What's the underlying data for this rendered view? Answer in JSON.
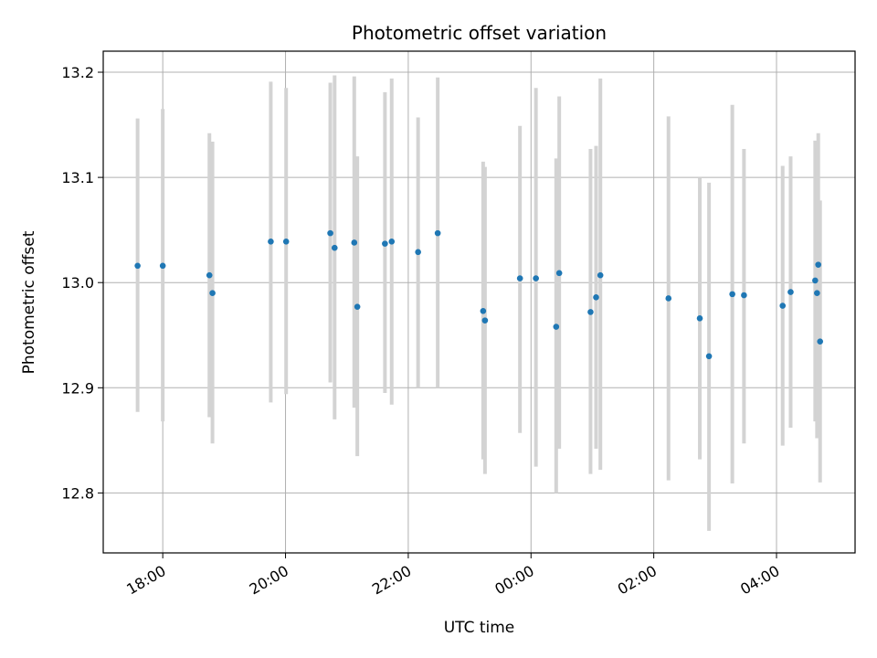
{
  "chart_data": {
    "type": "scatter",
    "title": "Photometric offset variation",
    "xlabel": "UTC time",
    "ylabel": "Photometric offset",
    "grid": true,
    "xlim": [
      -0.97,
      11.28
    ],
    "ylim": [
      12.743,
      13.22
    ],
    "x_ticks": [
      {
        "value": 0,
        "label": "18:00"
      },
      {
        "value": 2,
        "label": "20:00"
      },
      {
        "value": 4,
        "label": "22:00"
      },
      {
        "value": 6,
        "label": "00:00"
      },
      {
        "value": 8,
        "label": "02:00"
      },
      {
        "value": 10,
        "label": "04:00"
      }
    ],
    "y_ticks": [
      {
        "value": 12.8,
        "label": "12.8"
      },
      {
        "value": 12.9,
        "label": "12.9"
      },
      {
        "value": 13.0,
        "label": "13.0"
      },
      {
        "value": 13.1,
        "label": "13.1"
      },
      {
        "value": 13.2,
        "label": "13.2"
      }
    ],
    "x_unit_note": "hours after 18:00 UTC",
    "colors": {
      "point": "#1f77b4",
      "errorbar": "#d3d3d3",
      "grid": "#b0b0b0"
    },
    "points": [
      {
        "x": -0.41,
        "y": 13.016,
        "lo": 12.877,
        "hi": 13.156
      },
      {
        "x": 0.0,
        "y": 13.016,
        "lo": 12.868,
        "hi": 13.165
      },
      {
        "x": 0.76,
        "y": 13.007,
        "lo": 12.872,
        "hi": 13.142
      },
      {
        "x": 0.81,
        "y": 12.99,
        "lo": 12.847,
        "hi": 13.134
      },
      {
        "x": 1.76,
        "y": 13.039,
        "lo": 12.886,
        "hi": 13.191
      },
      {
        "x": 2.01,
        "y": 13.039,
        "lo": 12.894,
        "hi": 13.185
      },
      {
        "x": 2.73,
        "y": 13.047,
        "lo": 12.905,
        "hi": 13.19
      },
      {
        "x": 2.8,
        "y": 13.033,
        "lo": 12.87,
        "hi": 13.197
      },
      {
        "x": 3.12,
        "y": 13.038,
        "lo": 12.881,
        "hi": 13.196
      },
      {
        "x": 3.17,
        "y": 12.977,
        "lo": 12.835,
        "hi": 13.12
      },
      {
        "x": 3.62,
        "y": 13.037,
        "lo": 12.895,
        "hi": 13.181
      },
      {
        "x": 3.73,
        "y": 13.039,
        "lo": 12.884,
        "hi": 13.194
      },
      {
        "x": 4.16,
        "y": 13.029,
        "lo": 12.9,
        "hi": 13.157
      },
      {
        "x": 4.48,
        "y": 13.047,
        "lo": 12.9,
        "hi": 13.195
      },
      {
        "x": 5.22,
        "y": 12.973,
        "lo": 12.832,
        "hi": 13.115
      },
      {
        "x": 5.25,
        "y": 12.964,
        "lo": 12.818,
        "hi": 13.11
      },
      {
        "x": 5.82,
        "y": 13.004,
        "lo": 12.857,
        "hi": 13.149
      },
      {
        "x": 6.08,
        "y": 13.004,
        "lo": 12.825,
        "hi": 13.185
      },
      {
        "x": 6.41,
        "y": 12.958,
        "lo": 12.8,
        "hi": 13.118
      },
      {
        "x": 6.46,
        "y": 13.009,
        "lo": 12.842,
        "hi": 13.177
      },
      {
        "x": 6.97,
        "y": 12.972,
        "lo": 12.818,
        "hi": 13.127
      },
      {
        "x": 7.06,
        "y": 12.986,
        "lo": 12.842,
        "hi": 13.13
      },
      {
        "x": 7.13,
        "y": 13.007,
        "lo": 12.822,
        "hi": 13.194
      },
      {
        "x": 8.24,
        "y": 12.985,
        "lo": 12.812,
        "hi": 13.158
      },
      {
        "x": 8.75,
        "y": 12.966,
        "lo": 12.832,
        "hi": 13.1
      },
      {
        "x": 8.9,
        "y": 12.93,
        "lo": 12.764,
        "hi": 13.095
      },
      {
        "x": 9.28,
        "y": 12.989,
        "lo": 12.809,
        "hi": 13.169
      },
      {
        "x": 9.47,
        "y": 12.988,
        "lo": 12.847,
        "hi": 13.127
      },
      {
        "x": 10.1,
        "y": 12.978,
        "lo": 12.845,
        "hi": 13.111
      },
      {
        "x": 10.23,
        "y": 12.991,
        "lo": 12.862,
        "hi": 13.12
      },
      {
        "x": 10.63,
        "y": 13.002,
        "lo": 12.868,
        "hi": 13.135
      },
      {
        "x": 10.66,
        "y": 12.99,
        "lo": 12.852,
        "hi": 13.128
      },
      {
        "x": 10.68,
        "y": 13.017,
        "lo": 12.892,
        "hi": 13.142
      },
      {
        "x": 10.71,
        "y": 12.944,
        "lo": 12.81,
        "hi": 13.078
      }
    ]
  }
}
